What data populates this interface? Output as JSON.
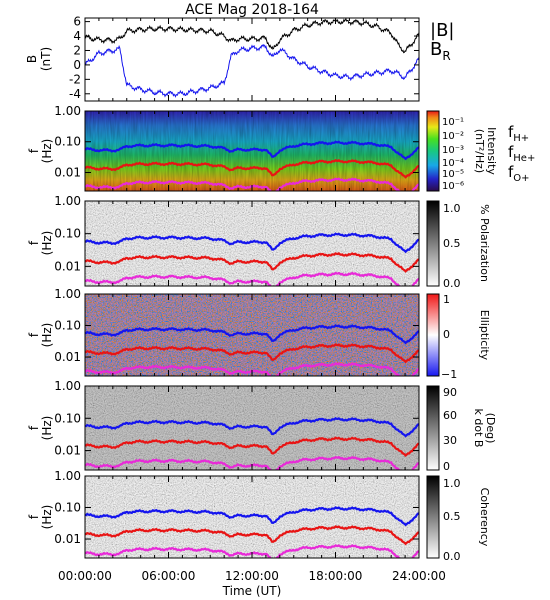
{
  "title": "ACE Mag 2018-164",
  "x_axis": {
    "label": "Time (UT)",
    "ticks": [
      "00:00:00",
      "06:00:00",
      "12:00:00",
      "18:00:00",
      "24:00:00"
    ]
  },
  "panels": [
    {
      "id": "field",
      "ylabel": "B",
      "yunit": "(nT)",
      "legend": [
        {
          "text": "|B|",
          "color": "#000000"
        },
        {
          "text": "B",
          "sub": "R",
          "color": "#1515ee"
        }
      ]
    },
    {
      "id": "intensity",
      "ylabel": "f",
      "yunit": "(Hz)",
      "colorbar": {
        "label": "Intensity",
        "unit": "(nT²/Hz)",
        "ticks": [
          "10⁻¹",
          "10⁻²",
          "10⁻³",
          "10⁻⁴",
          "10⁻⁵",
          "10⁻⁶"
        ]
      },
      "legend": [
        {
          "text": "f",
          "sub": "H+",
          "color": "#1515ee"
        },
        {
          "text": "f",
          "sub": "He+",
          "color": "#e81414"
        },
        {
          "text": "f",
          "sub": "O+",
          "color": "#e82ad8"
        }
      ]
    },
    {
      "id": "polarization",
      "ylabel": "f",
      "yunit": "(Hz)",
      "colorbar": {
        "label": "% Polarization",
        "unit": "",
        "ticks": [
          "1.0",
          "0.5",
          "0.0"
        ]
      }
    },
    {
      "id": "ellipticity",
      "ylabel": "f",
      "yunit": "(Hz)",
      "colorbar": {
        "label": "Ellipticity",
        "unit": "",
        "ticks": [
          "1",
          "0",
          "−1"
        ]
      }
    },
    {
      "id": "kdotb",
      "ylabel": "f",
      "yunit": "(Hz)",
      "colorbar": {
        "label": "k dot B",
        "unit": "(Deg)",
        "ticks": [
          "90",
          "60",
          "30",
          "0"
        ]
      }
    },
    {
      "id": "coherency",
      "ylabel": "f",
      "yunit": "(Hz)",
      "colorbar": {
        "label": "Coherency",
        "unit": "",
        "ticks": [
          "1.0",
          "0.5",
          "0.0"
        ]
      }
    }
  ],
  "chart_data": {
    "type": "line",
    "title": "ACE Mag 2018-164",
    "xlabel": "Time (UT)",
    "x_hours": [
      0,
      1,
      2,
      2.5,
      3,
      4,
      5,
      6,
      7,
      8,
      9,
      10,
      10.5,
      11,
      12,
      13,
      13.5,
      14,
      15,
      16,
      17,
      18,
      19,
      20,
      21,
      22,
      22.5,
      23,
      24
    ],
    "field_panel": {
      "ylabel": "B (nT)",
      "ylim": [
        -5,
        6.5
      ],
      "ticks": [
        -4,
        -2,
        0,
        2,
        4,
        6
      ],
      "series": [
        {
          "name": "|B|",
          "color": "#000000",
          "values": [
            3.8,
            3.5,
            3.4,
            3.6,
            4.7,
            4.9,
            5.0,
            5.0,
            4.9,
            4.8,
            4.7,
            4.0,
            3.3,
            3.6,
            3.6,
            3.7,
            2.0,
            3.5,
            4.8,
            5.5,
            5.9,
            6.0,
            6.0,
            5.8,
            5.3,
            4.4,
            2.8,
            1.8,
            4.2
          ]
        },
        {
          "name": "B_R",
          "color": "#1515ee",
          "values": [
            0.0,
            1.6,
            2.0,
            2.2,
            -2.8,
            -3.4,
            -3.8,
            -4.0,
            -4.0,
            -3.6,
            -3.2,
            -2.5,
            1.2,
            2.0,
            2.3,
            2.5,
            1.0,
            2.2,
            0.8,
            -0.2,
            -0.9,
            -1.5,
            -1.7,
            -1.4,
            -1.1,
            -0.8,
            -1.2,
            -1.8,
            0.8
          ]
        }
      ]
    },
    "freq_axis": {
      "ylabel": "f (Hz)",
      "log": true,
      "ylim": [
        0.0025,
        1.0
      ],
      "ticks": [
        "1.00",
        "0.10",
        "0.01"
      ]
    },
    "gyrofrequency_series": [
      {
        "name": "f_H+",
        "color": "#1515ee",
        "values": [
          0.058,
          0.053,
          0.052,
          0.055,
          0.072,
          0.075,
          0.076,
          0.076,
          0.075,
          0.073,
          0.072,
          0.061,
          0.05,
          0.055,
          0.055,
          0.056,
          0.03,
          0.053,
          0.073,
          0.084,
          0.09,
          0.092,
          0.092,
          0.088,
          0.081,
          0.067,
          0.043,
          0.027,
          0.064
        ]
      },
      {
        "name": "f_He+",
        "color": "#e81414",
        "values": [
          0.0145,
          0.0133,
          0.013,
          0.0138,
          0.018,
          0.0188,
          0.019,
          0.019,
          0.0188,
          0.0183,
          0.018,
          0.0153,
          0.0125,
          0.0138,
          0.0138,
          0.014,
          0.0075,
          0.0133,
          0.0183,
          0.021,
          0.0225,
          0.023,
          0.023,
          0.022,
          0.0203,
          0.0168,
          0.0108,
          0.0068,
          0.016
        ]
      },
      {
        "name": "f_O+",
        "color": "#e82ad8",
        "values": [
          0.0036,
          0.0033,
          0.0033,
          0.0034,
          0.0045,
          0.0047,
          0.0048,
          0.0048,
          0.0047,
          0.0046,
          0.0045,
          0.0038,
          0.0031,
          0.0034,
          0.0034,
          0.0035,
          0.0019,
          0.0033,
          0.0046,
          0.0053,
          0.0056,
          0.0058,
          0.0058,
          0.0055,
          0.0051,
          0.0042,
          0.0027,
          0.0017,
          0.004
        ]
      }
    ]
  }
}
